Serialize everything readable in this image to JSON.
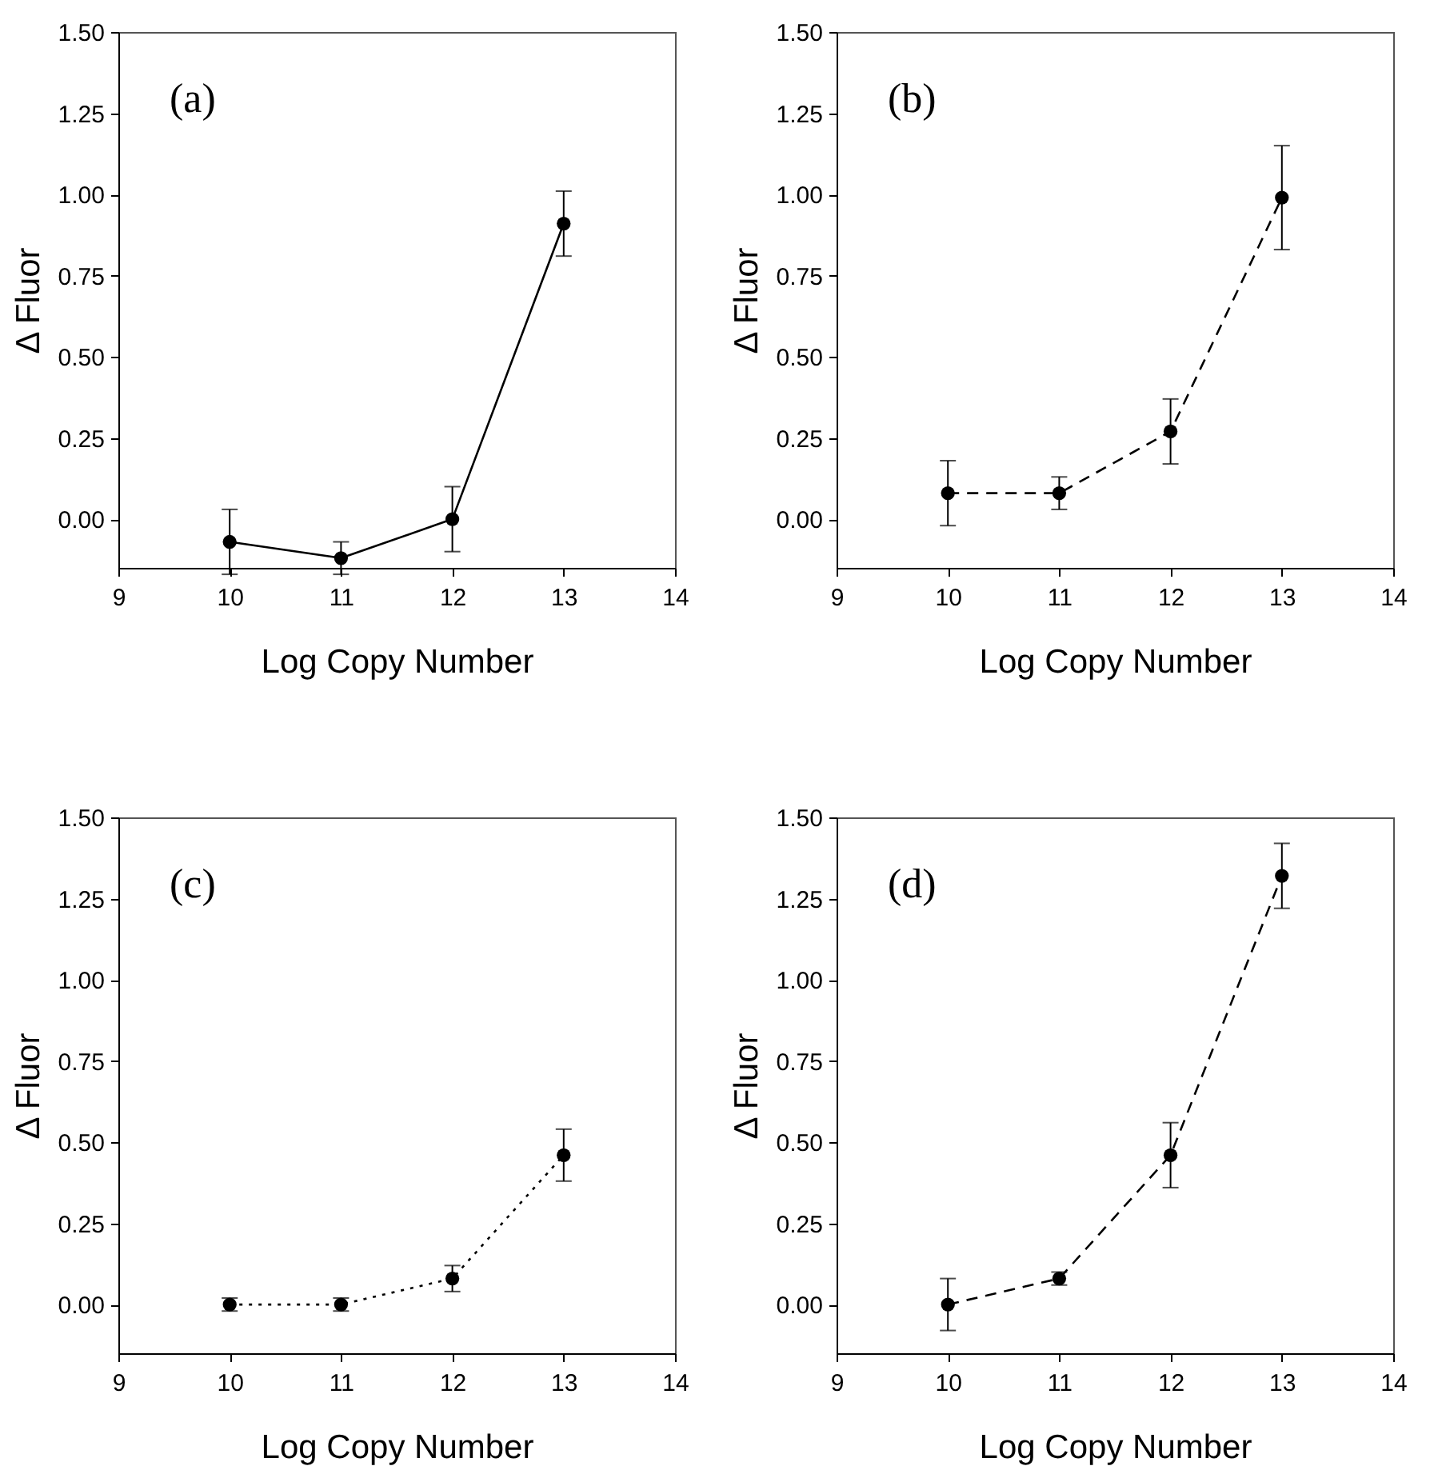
{
  "chart_data": [
    {
      "type": "line",
      "annotations": [
        "(a)"
      ],
      "xlabel": "Log Copy Number",
      "ylabel": "Δ Fluor",
      "x": [
        10,
        11,
        12,
        13
      ],
      "series": [
        {
          "color": "#000000",
          "values": [
            -0.07,
            -0.12,
            0.0,
            0.91
          ],
          "errors": [
            0.1,
            0.05,
            0.1,
            0.1
          ]
        }
      ],
      "xlim": [
        9,
        14
      ],
      "xticks": [
        9,
        10,
        11,
        12,
        13,
        14
      ],
      "ylim": [
        -0.15,
        1.5
      ],
      "yticks": [
        {
          "value": 0,
          "label": "0.00"
        },
        {
          "value": 0.25,
          "label": "0.25"
        },
        {
          "value": 0.5,
          "label": "0.50"
        },
        {
          "value": 0.75,
          "label": "0.75"
        },
        {
          "value": 1,
          "label": "1.00"
        },
        {
          "value": 1.25,
          "label": "1.25"
        },
        {
          "value": 1.5,
          "label": "1.50"
        }
      ],
      "marker": "circle",
      "line_style": "solid"
    },
    {
      "type": "line",
      "annotations": [
        "(b)"
      ],
      "xlabel": "Log Copy Number",
      "ylabel": "Δ Fluor",
      "x": [
        10,
        11,
        12,
        13
      ],
      "series": [
        {
          "color": "#000000",
          "values": [
            0.08,
            0.08,
            0.27,
            0.99
          ],
          "errors": [
            0.1,
            0.05,
            0.1,
            0.16
          ]
        }
      ],
      "xlim": [
        9,
        14
      ],
      "xticks": [
        9,
        10,
        11,
        12,
        13,
        14
      ],
      "ylim": [
        -0.15,
        1.5
      ],
      "yticks": [
        {
          "value": 0,
          "label": "0.00"
        },
        {
          "value": 0.25,
          "label": "0.25"
        },
        {
          "value": 0.5,
          "label": "0.50"
        },
        {
          "value": 0.75,
          "label": "0.75"
        },
        {
          "value": 1,
          "label": "1.00"
        },
        {
          "value": 1.25,
          "label": "1.25"
        },
        {
          "value": 1.5,
          "label": "1.50"
        }
      ],
      "marker": "circle",
      "line_style": "dashed"
    },
    {
      "type": "line",
      "annotations": [
        "(c)"
      ],
      "xlabel": "Log Copy Number",
      "ylabel": "Δ Fluor",
      "x": [
        10,
        11,
        12,
        13
      ],
      "series": [
        {
          "color": "#000000",
          "values": [
            0.0,
            0.0,
            0.08,
            0.46
          ],
          "errors": [
            0.02,
            0.02,
            0.04,
            0.08
          ]
        }
      ],
      "xlim": [
        9,
        14
      ],
      "xticks": [
        9,
        10,
        11,
        12,
        13,
        14
      ],
      "ylim": [
        -0.15,
        1.5
      ],
      "yticks": [
        {
          "value": 0,
          "label": "0.00"
        },
        {
          "value": 0.25,
          "label": "0.25"
        },
        {
          "value": 0.5,
          "label": "0.50"
        },
        {
          "value": 0.75,
          "label": "0.75"
        },
        {
          "value": 1,
          "label": "1.00"
        },
        {
          "value": 1.25,
          "label": "1.25"
        },
        {
          "value": 1.5,
          "label": "1.50"
        }
      ],
      "marker": "circle",
      "line_style": "dotted"
    },
    {
      "type": "line",
      "annotations": [
        "(d)"
      ],
      "xlabel": "Log Copy Number",
      "ylabel": "Δ Fluor",
      "x": [
        10,
        11,
        12,
        13
      ],
      "series": [
        {
          "color": "#000000",
          "values": [
            0.0,
            0.08,
            0.46,
            1.32
          ],
          "errors": [
            0.08,
            0.02,
            0.1,
            0.1
          ]
        }
      ],
      "xlim": [
        9,
        14
      ],
      "xticks": [
        9,
        10,
        11,
        12,
        13,
        14
      ],
      "ylim": [
        -0.15,
        1.5
      ],
      "yticks": [
        {
          "value": 0,
          "label": "0.00"
        },
        {
          "value": 0.25,
          "label": "0.25"
        },
        {
          "value": 0.5,
          "label": "0.50"
        },
        {
          "value": 0.75,
          "label": "0.75"
        },
        {
          "value": 1,
          "label": "1.00"
        },
        {
          "value": 1.25,
          "label": "1.25"
        },
        {
          "value": 1.5,
          "label": "1.50"
        }
      ],
      "marker": "circle",
      "line_style": "dashed"
    }
  ]
}
